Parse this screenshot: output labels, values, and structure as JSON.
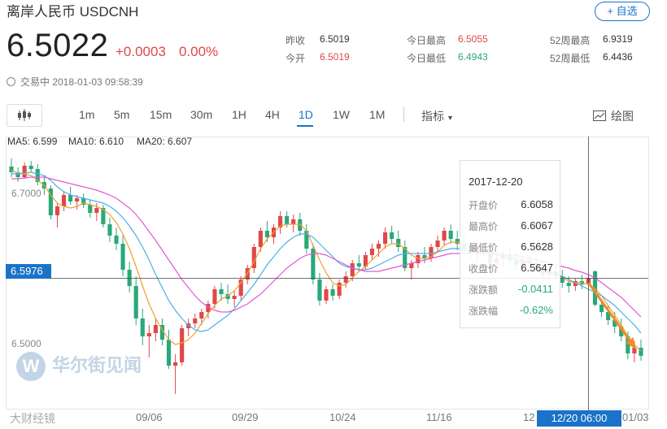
{
  "header": {
    "title": "离岸人民币  USDCNH",
    "watch_label": "+ 自选",
    "price": "6.5022",
    "change": "+0.0003",
    "change_pct": "0.00%",
    "status": "交易中 2018-01-03 09:58:39"
  },
  "stats": [
    {
      "label": "昨收",
      "value": "6.5019",
      "tone": "neu"
    },
    {
      "label": "今开",
      "value": "6.5019",
      "tone": "up"
    },
    {
      "label": "今日最高",
      "value": "6.5055",
      "tone": "up"
    },
    {
      "label": "今日最低",
      "value": "6.4943",
      "tone": "dn"
    },
    {
      "label": "52周最高",
      "value": "6.9319",
      "tone": "neu"
    },
    {
      "label": "52周最低",
      "value": "6.4436",
      "tone": "neu"
    }
  ],
  "toolbar": {
    "tabs": [
      "1m",
      "5m",
      "15m",
      "30m",
      "1H",
      "4H",
      "1D",
      "1W",
      "1M"
    ],
    "active_tab": "1D",
    "indicator_label": "指标",
    "draw_label": "绘图"
  },
  "legend": {
    "ma5": "MA5: 6.599",
    "ma10": "MA10: 6.610",
    "ma20": "MA20: 6.607"
  },
  "tooltip": {
    "date": "2017-12-20",
    "rows": [
      {
        "k": "开盘价",
        "v": "6.6058",
        "tone": "neu"
      },
      {
        "k": "最高价",
        "v": "6.6067",
        "tone": "neu"
      },
      {
        "k": "最低价",
        "v": "6.5628",
        "tone": "neu"
      },
      {
        "k": "收盘价",
        "v": "6.5647",
        "tone": "neu"
      },
      {
        "k": "涨跌额",
        "v": "-0.0411",
        "tone": "dn"
      },
      {
        "k": "涨跌幅",
        "v": "-0.62%",
        "tone": "dn"
      }
    ]
  },
  "crosshair": {
    "price": "6.5976",
    "date": "12/20 06:00"
  },
  "watermark": "华尔街见闻",
  "watermark_logo": "W",
  "source_mark": "大财经镜",
  "colors": {
    "up": "#e04848",
    "down": "#2aa87a",
    "ma5": "#f0a030",
    "ma10": "#4ab0e8",
    "ma20": "#e05ad0",
    "accent": "#1a73c8",
    "arrow": "#f08a2a"
  },
  "chart_data": {
    "type": "candlestick",
    "y_ticks": [
      "6.7000",
      "6.5000"
    ],
    "x_ticks": [
      "09/06",
      "09/29",
      "10/24",
      "11/16",
      "12",
      "01/03"
    ],
    "ylim": [
      6.44,
      6.76
    ],
    "candles": [
      [
        6.735,
        6.745,
        6.722,
        6.728
      ],
      [
        6.728,
        6.734,
        6.716,
        6.722
      ],
      [
        6.722,
        6.74,
        6.72,
        6.736
      ],
      [
        6.736,
        6.742,
        6.728,
        6.732
      ],
      [
        6.732,
        6.738,
        6.712,
        6.716
      ],
      [
        6.716,
        6.724,
        6.7,
        6.708
      ],
      [
        6.708,
        6.712,
        6.67,
        6.675
      ],
      [
        6.675,
        6.69,
        6.66,
        6.686
      ],
      [
        6.686,
        6.705,
        6.68,
        6.7
      ],
      [
        6.7,
        6.71,
        6.688,
        6.692
      ],
      [
        6.692,
        6.7,
        6.682,
        6.696
      ],
      [
        6.696,
        6.702,
        6.684,
        6.688
      ],
      [
        6.688,
        6.694,
        6.672,
        6.678
      ],
      [
        6.678,
        6.69,
        6.668,
        6.684
      ],
      [
        6.684,
        6.688,
        6.66,
        6.664
      ],
      [
        6.664,
        6.672,
        6.642,
        6.65
      ],
      [
        6.65,
        6.66,
        6.632,
        6.64
      ],
      [
        6.64,
        6.65,
        6.6,
        6.608
      ],
      [
        6.608,
        6.618,
        6.58,
        6.588
      ],
      [
        6.588,
        6.6,
        6.54,
        6.548
      ],
      [
        6.548,
        6.56,
        6.515,
        6.526
      ],
      [
        6.526,
        6.54,
        6.5,
        6.53
      ],
      [
        6.53,
        6.548,
        6.52,
        6.54
      ],
      [
        6.54,
        6.548,
        6.515,
        6.522
      ],
      [
        6.522,
        6.534,
        6.486,
        6.49
      ],
      [
        6.49,
        6.504,
        6.455,
        6.494
      ],
      [
        6.494,
        6.54,
        6.49,
        6.536
      ],
      [
        6.536,
        6.548,
        6.526,
        6.542
      ],
      [
        6.542,
        6.554,
        6.536,
        6.548
      ],
      [
        6.548,
        6.56,
        6.54,
        6.556
      ],
      [
        6.556,
        6.57,
        6.548,
        6.566
      ],
      [
        6.566,
        6.588,
        6.56,
        6.584
      ],
      [
        6.584,
        6.592,
        6.57,
        6.578
      ],
      [
        6.578,
        6.59,
        6.566,
        6.572
      ],
      [
        6.572,
        6.582,
        6.562,
        6.576
      ],
      [
        6.576,
        6.6,
        6.57,
        6.596
      ],
      [
        6.596,
        6.614,
        6.59,
        6.61
      ],
      [
        6.61,
        6.64,
        6.604,
        6.636
      ],
      [
        6.636,
        6.66,
        6.63,
        6.656
      ],
      [
        6.656,
        6.668,
        6.642,
        6.648
      ],
      [
        6.648,
        6.664,
        6.64,
        6.66
      ],
      [
        6.66,
        6.68,
        6.652,
        6.674
      ],
      [
        6.674,
        6.68,
        6.66,
        6.664
      ],
      [
        6.664,
        6.676,
        6.654,
        6.67
      ],
      [
        6.67,
        6.678,
        6.65,
        6.656
      ],
      [
        6.656,
        6.664,
        6.628,
        6.634
      ],
      [
        6.634,
        6.64,
        6.59,
        6.596
      ],
      [
        6.596,
        6.604,
        6.564,
        6.57
      ],
      [
        6.57,
        6.588,
        6.566,
        6.584
      ],
      [
        6.584,
        6.59,
        6.57,
        6.576
      ],
      [
        6.576,
        6.596,
        6.572,
        6.592
      ],
      [
        6.592,
        6.606,
        6.586,
        6.6
      ],
      [
        6.6,
        6.62,
        6.594,
        6.616
      ],
      [
        6.616,
        6.626,
        6.606,
        6.612
      ],
      [
        6.612,
        6.63,
        6.608,
        6.626
      ],
      [
        6.626,
        6.64,
        6.62,
        6.634
      ],
      [
        6.634,
        6.644,
        6.624,
        6.64
      ],
      [
        6.64,
        6.66,
        6.634,
        6.654
      ],
      [
        6.654,
        6.662,
        6.64,
        6.646
      ],
      [
        6.646,
        6.656,
        6.63,
        6.636
      ],
      [
        6.636,
        6.644,
        6.606,
        6.61
      ],
      [
        6.61,
        6.62,
        6.596,
        6.616
      ],
      [
        6.616,
        6.63,
        6.61,
        6.626
      ],
      [
        6.626,
        6.636,
        6.616,
        6.622
      ],
      [
        6.622,
        6.64,
        6.618,
        6.636
      ],
      [
        6.636,
        6.65,
        6.63,
        6.644
      ],
      [
        6.644,
        6.66,
        6.638,
        6.656
      ],
      [
        6.656,
        6.664,
        6.64,
        6.646
      ],
      [
        6.646,
        6.656,
        6.632,
        6.64
      ],
      [
        6.64,
        6.65,
        6.628,
        6.632
      ],
      [
        6.632,
        6.64,
        6.62,
        6.628
      ],
      [
        6.628,
        6.64,
        6.618,
        6.636
      ],
      [
        6.636,
        6.646,
        6.626,
        6.632
      ],
      [
        6.632,
        6.64,
        6.61,
        6.616
      ],
      [
        6.616,
        6.628,
        6.606,
        6.622
      ],
      [
        6.622,
        6.632,
        6.612,
        6.626
      ],
      [
        6.626,
        6.636,
        6.616,
        6.62
      ],
      [
        6.62,
        6.63,
        6.608,
        6.614
      ],
      [
        6.614,
        6.624,
        6.604,
        6.62
      ],
      [
        6.62,
        6.628,
        6.61,
        6.616
      ],
      [
        6.616,
        6.626,
        6.608,
        6.612
      ],
      [
        6.612,
        6.62,
        6.596,
        6.602
      ],
      [
        6.602,
        6.612,
        6.592,
        6.606
      ],
      [
        6.606,
        6.616,
        6.596,
        6.6
      ],
      [
        6.6,
        6.608,
        6.586,
        6.592
      ],
      [
        6.592,
        6.6,
        6.58,
        6.588
      ],
      [
        6.588,
        6.598,
        6.582,
        6.594
      ],
      [
        6.594,
        6.602,
        6.584,
        6.59
      ],
      [
        6.59,
        6.6,
        6.588,
        6.598
      ],
      [
        6.606,
        6.607,
        6.563,
        6.565
      ],
      [
        6.565,
        6.572,
        6.55,
        6.556
      ],
      [
        6.556,
        6.564,
        6.54,
        6.546
      ],
      [
        6.546,
        6.556,
        6.53,
        6.538
      ],
      [
        6.538,
        6.548,
        6.52,
        6.526
      ],
      [
        6.526,
        6.532,
        6.498,
        6.505
      ],
      [
        6.505,
        6.52,
        6.494,
        6.512
      ],
      [
        6.512,
        6.522,
        6.496,
        6.502
      ]
    ],
    "series": [
      {
        "name": "MA5",
        "values": [
          6.73,
          6.727,
          6.726,
          6.724,
          6.718,
          6.712,
          6.7,
          6.69,
          6.686,
          6.684,
          6.686,
          6.69,
          6.688,
          6.686,
          6.682,
          6.676,
          6.666,
          6.652,
          6.634,
          6.612,
          6.588,
          6.566,
          6.548,
          6.534,
          6.522,
          6.516,
          6.518,
          6.522,
          6.53,
          6.542,
          6.554,
          6.564,
          6.572,
          6.576,
          6.582,
          6.592,
          6.604,
          6.618,
          6.634,
          6.646,
          6.654,
          6.662,
          6.664,
          6.664,
          6.664,
          6.656,
          6.638,
          6.62,
          6.604,
          6.592,
          6.588,
          6.59,
          6.598,
          6.606,
          6.612,
          6.62,
          6.628,
          6.636,
          6.64,
          6.64,
          6.634,
          6.626,
          6.622,
          6.622,
          6.624,
          6.63,
          6.638,
          6.642,
          6.642,
          6.64,
          6.636,
          6.634,
          6.632,
          6.63,
          6.628,
          6.626,
          6.624,
          6.622,
          6.62,
          6.618,
          6.614,
          6.61,
          6.606,
          6.602,
          6.598,
          6.594,
          6.592,
          6.592,
          6.59,
          6.585,
          6.576,
          6.564,
          6.552,
          6.54,
          6.526,
          6.516,
          6.508
        ]
      },
      {
        "name": "MA10",
        "values": [
          6.726,
          6.726,
          6.727,
          6.728,
          6.726,
          6.724,
          6.718,
          6.71,
          6.704,
          6.7,
          6.698,
          6.696,
          6.694,
          6.692,
          6.69,
          6.686,
          6.68,
          6.672,
          6.662,
          6.65,
          6.636,
          6.62,
          6.602,
          6.586,
          6.57,
          6.558,
          6.548,
          6.54,
          6.534,
          6.532,
          6.534,
          6.54,
          6.546,
          6.552,
          6.56,
          6.57,
          6.58,
          6.59,
          6.602,
          6.614,
          6.624,
          6.634,
          6.642,
          6.648,
          6.652,
          6.652,
          6.648,
          6.64,
          6.632,
          6.624,
          6.616,
          6.612,
          6.61,
          6.608,
          6.608,
          6.61,
          6.614,
          6.618,
          6.622,
          6.626,
          6.628,
          6.628,
          6.628,
          6.628,
          6.628,
          6.63,
          6.632,
          6.634,
          6.634,
          6.634,
          6.634,
          6.632,
          6.63,
          6.628,
          6.626,
          6.624,
          6.622,
          6.62,
          6.618,
          6.616,
          6.612,
          6.61,
          6.606,
          6.602,
          6.6,
          6.596,
          6.592,
          6.588,
          6.584,
          6.58,
          6.576,
          6.57,
          6.564,
          6.556,
          6.548,
          6.54,
          6.53
        ]
      },
      {
        "name": "MA20",
        "values": [
          6.72,
          6.72,
          6.721,
          6.722,
          6.722,
          6.722,
          6.72,
          6.718,
          6.716,
          6.714,
          6.712,
          6.71,
          6.708,
          6.706,
          6.703,
          6.7,
          6.696,
          6.69,
          6.684,
          6.676,
          6.666,
          6.655,
          6.644,
          6.632,
          6.62,
          6.608,
          6.596,
          6.586,
          6.576,
          6.568,
          6.562,
          6.558,
          6.556,
          6.556,
          6.558,
          6.562,
          6.566,
          6.572,
          6.578,
          6.586,
          6.594,
          6.602,
          6.61,
          6.616,
          6.622,
          6.626,
          6.628,
          6.628,
          6.626,
          6.622,
          6.618,
          6.614,
          6.61,
          6.608,
          6.606,
          6.606,
          6.606,
          6.608,
          6.61,
          6.612,
          6.614,
          6.616,
          6.618,
          6.62,
          6.622,
          6.624,
          6.626,
          6.628,
          6.628,
          6.628,
          6.628,
          6.628,
          6.628,
          6.628,
          6.628,
          6.627,
          6.626,
          6.625,
          6.624,
          6.622,
          6.62,
          6.618,
          6.616,
          6.614,
          6.612,
          6.61,
          6.607,
          6.605,
          6.602,
          6.598,
          6.592,
          6.586,
          6.58,
          6.574,
          6.566,
          6.558,
          6.55
        ]
      }
    ]
  }
}
